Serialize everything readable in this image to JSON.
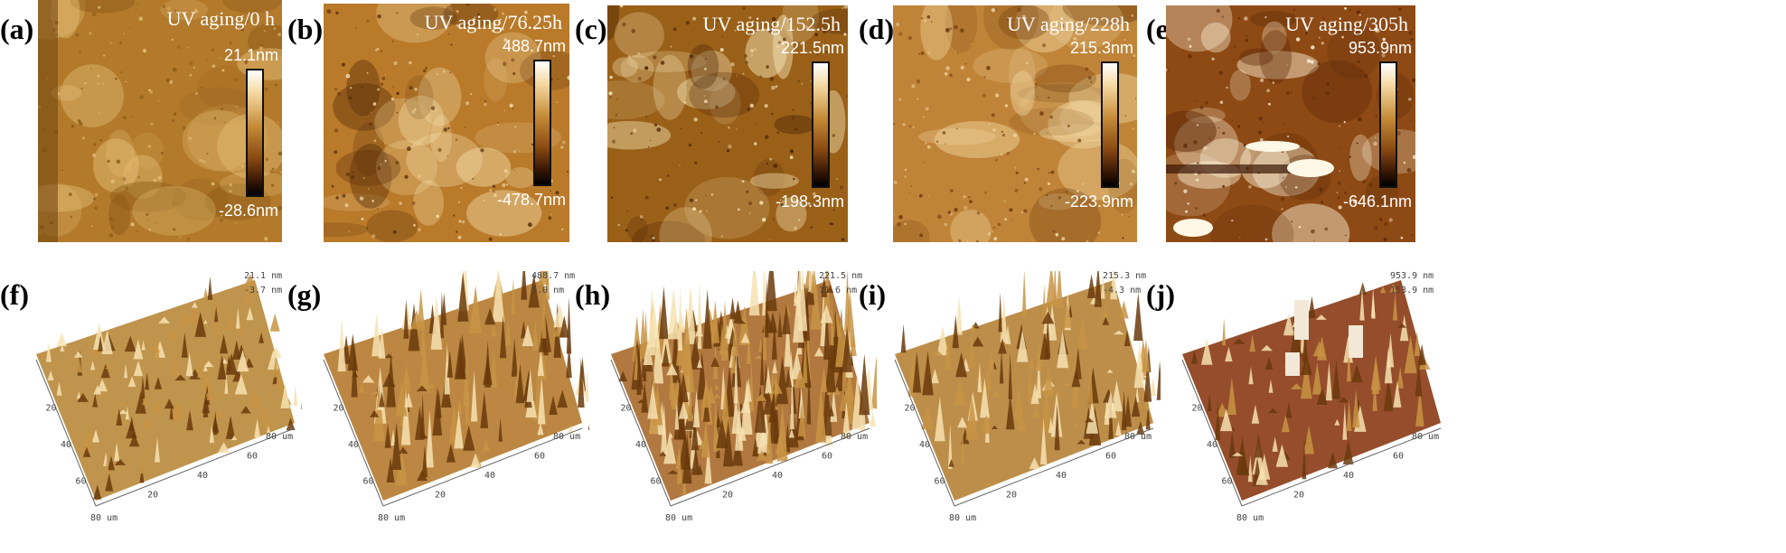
{
  "top_panels": [
    {
      "letter": "(a)",
      "title": "UV aging/0 h",
      "max": "21.1nm",
      "min": "-28.6nm",
      "base": "#b37a2c",
      "dark": "#8c5a16",
      "light": "#e6c27a"
    },
    {
      "letter": "(b)",
      "title": "UV aging/76.25h",
      "max": "488.7nm",
      "min": "-478.7nm",
      "base": "#b97a2a",
      "dark": "#5a2f0a",
      "light": "#f3dca8"
    },
    {
      "letter": "(c)",
      "title": "UV aging/152.5h",
      "max": "221.5nm",
      "min": "-198.3nm",
      "base": "#9a6018",
      "dark": "#4a2205",
      "light": "#f6e6b8"
    },
    {
      "letter": "(d)",
      "title": "UV aging/228h",
      "max": "215.3nm",
      "min": "-223.9nm",
      "base": "#c08438",
      "dark": "#6e3a0c",
      "light": "#f0d6a0"
    },
    {
      "letter": "(e)",
      "title": "UV aging/305h",
      "max": "953.9nm",
      "min": "-646.1nm",
      "base": "#8e4a14",
      "dark": "#5c2a08",
      "light": "#fdf2d8"
    }
  ],
  "bottom_panels": [
    {
      "letter": "(f)",
      "zmax": "21.1 nm",
      "zmid": "-3.7 nm",
      "zmin": "",
      "color": "#b88838"
    },
    {
      "letter": "(g)",
      "zmax": "488.7 nm",
      "zmid": "5.0 nm",
      "zmin": "",
      "color": "#b57a2e"
    },
    {
      "letter": "(h)",
      "zmax": "221.5 nm",
      "zmid": "11.6 nm",
      "zmin": "",
      "color": "#a8692a"
    },
    {
      "letter": "(i)",
      "zmax": "215.3 nm",
      "zmid": "-4.3 nm",
      "zmin": "",
      "color": "#b58236"
    },
    {
      "letter": "(j)",
      "zmax": "953.9 nm",
      "zmid": "153.9 nm",
      "zmin": "",
      "color": "#8a3a14"
    }
  ],
  "axis_ticks": [
    "20",
    "40",
    "60",
    "80 um"
  ],
  "colors": {
    "background": "#ffffff",
    "label_white": "#ffffff"
  }
}
